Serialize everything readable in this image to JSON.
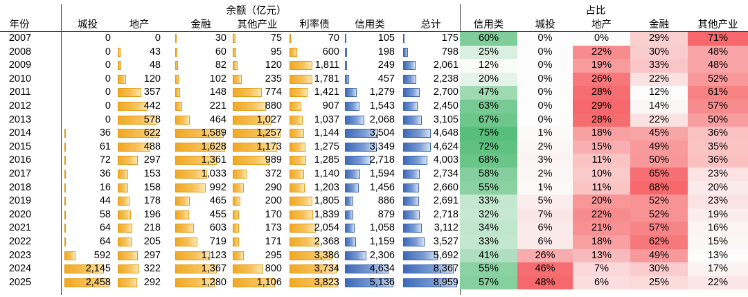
{
  "header": {
    "year_label": "年份",
    "balance_group": "余额（亿元）",
    "share_group": "占比",
    "balance_cols": [
      "城投",
      "地产",
      "金融",
      "其他产业",
      "利率债",
      "信用类",
      "总计"
    ],
    "share_cols": [
      "信用类",
      "城投",
      "地产",
      "金融",
      "其他产业"
    ]
  },
  "chart_data": {
    "type": "table",
    "rows": [
      {
        "year": "2007",
        "balance": [
          "0",
          "0",
          "30",
          "75",
          "70",
          "105",
          "175"
        ],
        "share": [
          "60%",
          "0%",
          "0%",
          "29%",
          "71%"
        ]
      },
      {
        "year": "2008",
        "balance": [
          "0",
          "43",
          "60",
          "95",
          "600",
          "198",
          "798"
        ],
        "share": [
          "25%",
          "0%",
          "22%",
          "30%",
          "48%"
        ]
      },
      {
        "year": "2009",
        "balance": [
          "0",
          "48",
          "82",
          "120",
          "1,811",
          "249",
          "2,061"
        ],
        "share": [
          "12%",
          "0%",
          "19%",
          "33%",
          "48%"
        ]
      },
      {
        "year": "2010",
        "balance": [
          "0",
          "120",
          "102",
          "235",
          "1,781",
          "457",
          "2,238"
        ],
        "share": [
          "20%",
          "0%",
          "26%",
          "22%",
          "52%"
        ]
      },
      {
        "year": "2011",
        "balance": [
          "0",
          "357",
          "148",
          "774",
          "1,421",
          "1,279",
          "2,700"
        ],
        "share": [
          "47%",
          "0%",
          "28%",
          "12%",
          "61%"
        ]
      },
      {
        "year": "2012",
        "balance": [
          "0",
          "442",
          "221",
          "880",
          "907",
          "1,543",
          "2,450"
        ],
        "share": [
          "63%",
          "0%",
          "29%",
          "14%",
          "57%"
        ]
      },
      {
        "year": "2013",
        "balance": [
          "0",
          "578",
          "464",
          "1,027",
          "1,037",
          "2,068",
          "3,105"
        ],
        "share": [
          "67%",
          "0%",
          "28%",
          "22%",
          "50%"
        ]
      },
      {
        "year": "2014",
        "balance": [
          "36",
          "622",
          "1,589",
          "1,257",
          "1,144",
          "3,504",
          "4,648"
        ],
        "share": [
          "75%",
          "1%",
          "18%",
          "45%",
          "36%"
        ]
      },
      {
        "year": "2015",
        "balance": [
          "61",
          "488",
          "1,628",
          "1,173",
          "1,275",
          "3,349",
          "4,624"
        ],
        "share": [
          "72%",
          "2%",
          "15%",
          "49%",
          "35%"
        ]
      },
      {
        "year": "2016",
        "balance": [
          "72",
          "297",
          "1,361",
          "989",
          "1,285",
          "2,718",
          "4,003"
        ],
        "share": [
          "68%",
          "3%",
          "11%",
          "50%",
          "36%"
        ]
      },
      {
        "year": "2017",
        "balance": [
          "36",
          "153",
          "1,033",
          "372",
          "1,140",
          "1,594",
          "2,734"
        ],
        "share": [
          "58%",
          "2%",
          "10%",
          "65%",
          "23%"
        ]
      },
      {
        "year": "2018",
        "balance": [
          "16",
          "158",
          "992",
          "290",
          "1,203",
          "1,456",
          "2,660"
        ],
        "share": [
          "55%",
          "1%",
          "11%",
          "68%",
          "20%"
        ]
      },
      {
        "year": "2019",
        "balance": [
          "44",
          "178",
          "465",
          "200",
          "1,805",
          "886",
          "2,691"
        ],
        "share": [
          "33%",
          "5%",
          "20%",
          "52%",
          "23%"
        ]
      },
      {
        "year": "2020",
        "balance": [
          "58",
          "196",
          "455",
          "170",
          "1,839",
          "879",
          "2,718"
        ],
        "share": [
          "32%",
          "7%",
          "22%",
          "52%",
          "19%"
        ]
      },
      {
        "year": "2021",
        "balance": [
          "64",
          "218",
          "603",
          "173",
          "2,054",
          "1,058",
          "3,112"
        ],
        "share": [
          "34%",
          "6%",
          "21%",
          "57%",
          "16%"
        ]
      },
      {
        "year": "2022",
        "balance": [
          "64",
          "205",
          "719",
          "171",
          "2,368",
          "1,159",
          "3,527"
        ],
        "share": [
          "33%",
          "6%",
          "18%",
          "62%",
          "15%"
        ]
      },
      {
        "year": "2023",
        "balance": [
          "592",
          "297",
          "1,123",
          "295",
          "3,386",
          "2,306",
          "5,692"
        ],
        "share": [
          "41%",
          "26%",
          "13%",
          "49%",
          "13%"
        ]
      },
      {
        "year": "2024",
        "balance": [
          "2,145",
          "322",
          "1,367",
          "800",
          "3,734",
          "4,634",
          "8,367"
        ],
        "share": [
          "55%",
          "46%",
          "7%",
          "30%",
          "17%"
        ]
      },
      {
        "year": "2025",
        "balance": [
          "2,458",
          "292",
          "1,280",
          "1,106",
          "3,823",
          "5,136",
          "8,959"
        ],
        "share": [
          "57%",
          "48%",
          "6%",
          "25%",
          "22%"
        ]
      }
    ]
  }
}
